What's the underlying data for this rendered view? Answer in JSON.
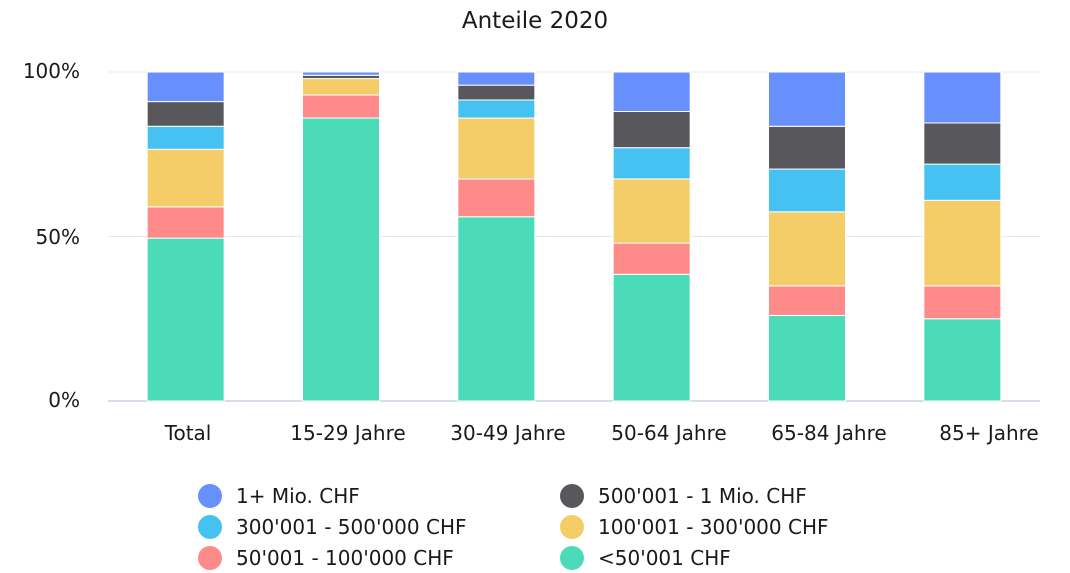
{
  "chart_data": {
    "type": "bar",
    "stacked": true,
    "title": "Anteile 2020",
    "categories": [
      "Total",
      "15-29 Jahre",
      "30-49 Jahre",
      "50-64 Jahre",
      "65-84 Jahre",
      "85+ Jahre"
    ],
    "ylim": [
      0,
      100
    ],
    "ytick_labels": [
      "100%",
      "50%",
      "0%"
    ],
    "ytick_values": [
      100,
      50,
      0
    ],
    "grid": true,
    "legend_position": "bottom",
    "series": [
      {
        "name": "<50'001 CHF",
        "color": "#4bdbb8",
        "values": [
          49.5,
          86,
          56,
          38.5,
          26,
          25
        ]
      },
      {
        "name": "50'001 - 100'000 CHF",
        "color": "#ff8a8a",
        "values": [
          9.5,
          7,
          11.5,
          9.5,
          9,
          10
        ]
      },
      {
        "name": "100'001 - 300'000 CHF",
        "color": "#f4cd69",
        "values": [
          17.5,
          5,
          18.5,
          19.5,
          22.5,
          26
        ]
      },
      {
        "name": "300'001 - 500'000 CHF",
        "color": "#45c2f2",
        "values": [
          7,
          0,
          5.5,
          9.5,
          13,
          11
        ]
      },
      {
        "name": "500'001 - 1 Mio. CHF",
        "color": "#58585c",
        "values": [
          7.5,
          1,
          4.5,
          11,
          13,
          12.5
        ]
      },
      {
        "name": "1+ Mio. CHF",
        "color": "#6790fc",
        "values": [
          9,
          1,
          4,
          12,
          16.5,
          15.5
        ]
      }
    ]
  },
  "legend_items": [
    {
      "label": "1+ Mio. CHF",
      "color": "#6790fc"
    },
    {
      "label": "500'001 - 1 Mio. CHF",
      "color": "#58585c"
    },
    {
      "label": "300'001 - 500'000 CHF",
      "color": "#45c2f2"
    },
    {
      "label": "100'001 - 300'000 CHF",
      "color": "#f4cd69"
    },
    {
      "label": "50'001 - 100'000 CHF",
      "color": "#ff8a8a"
    },
    {
      "label": "<50'001 CHF",
      "color": "#4bdbb8"
    }
  ]
}
